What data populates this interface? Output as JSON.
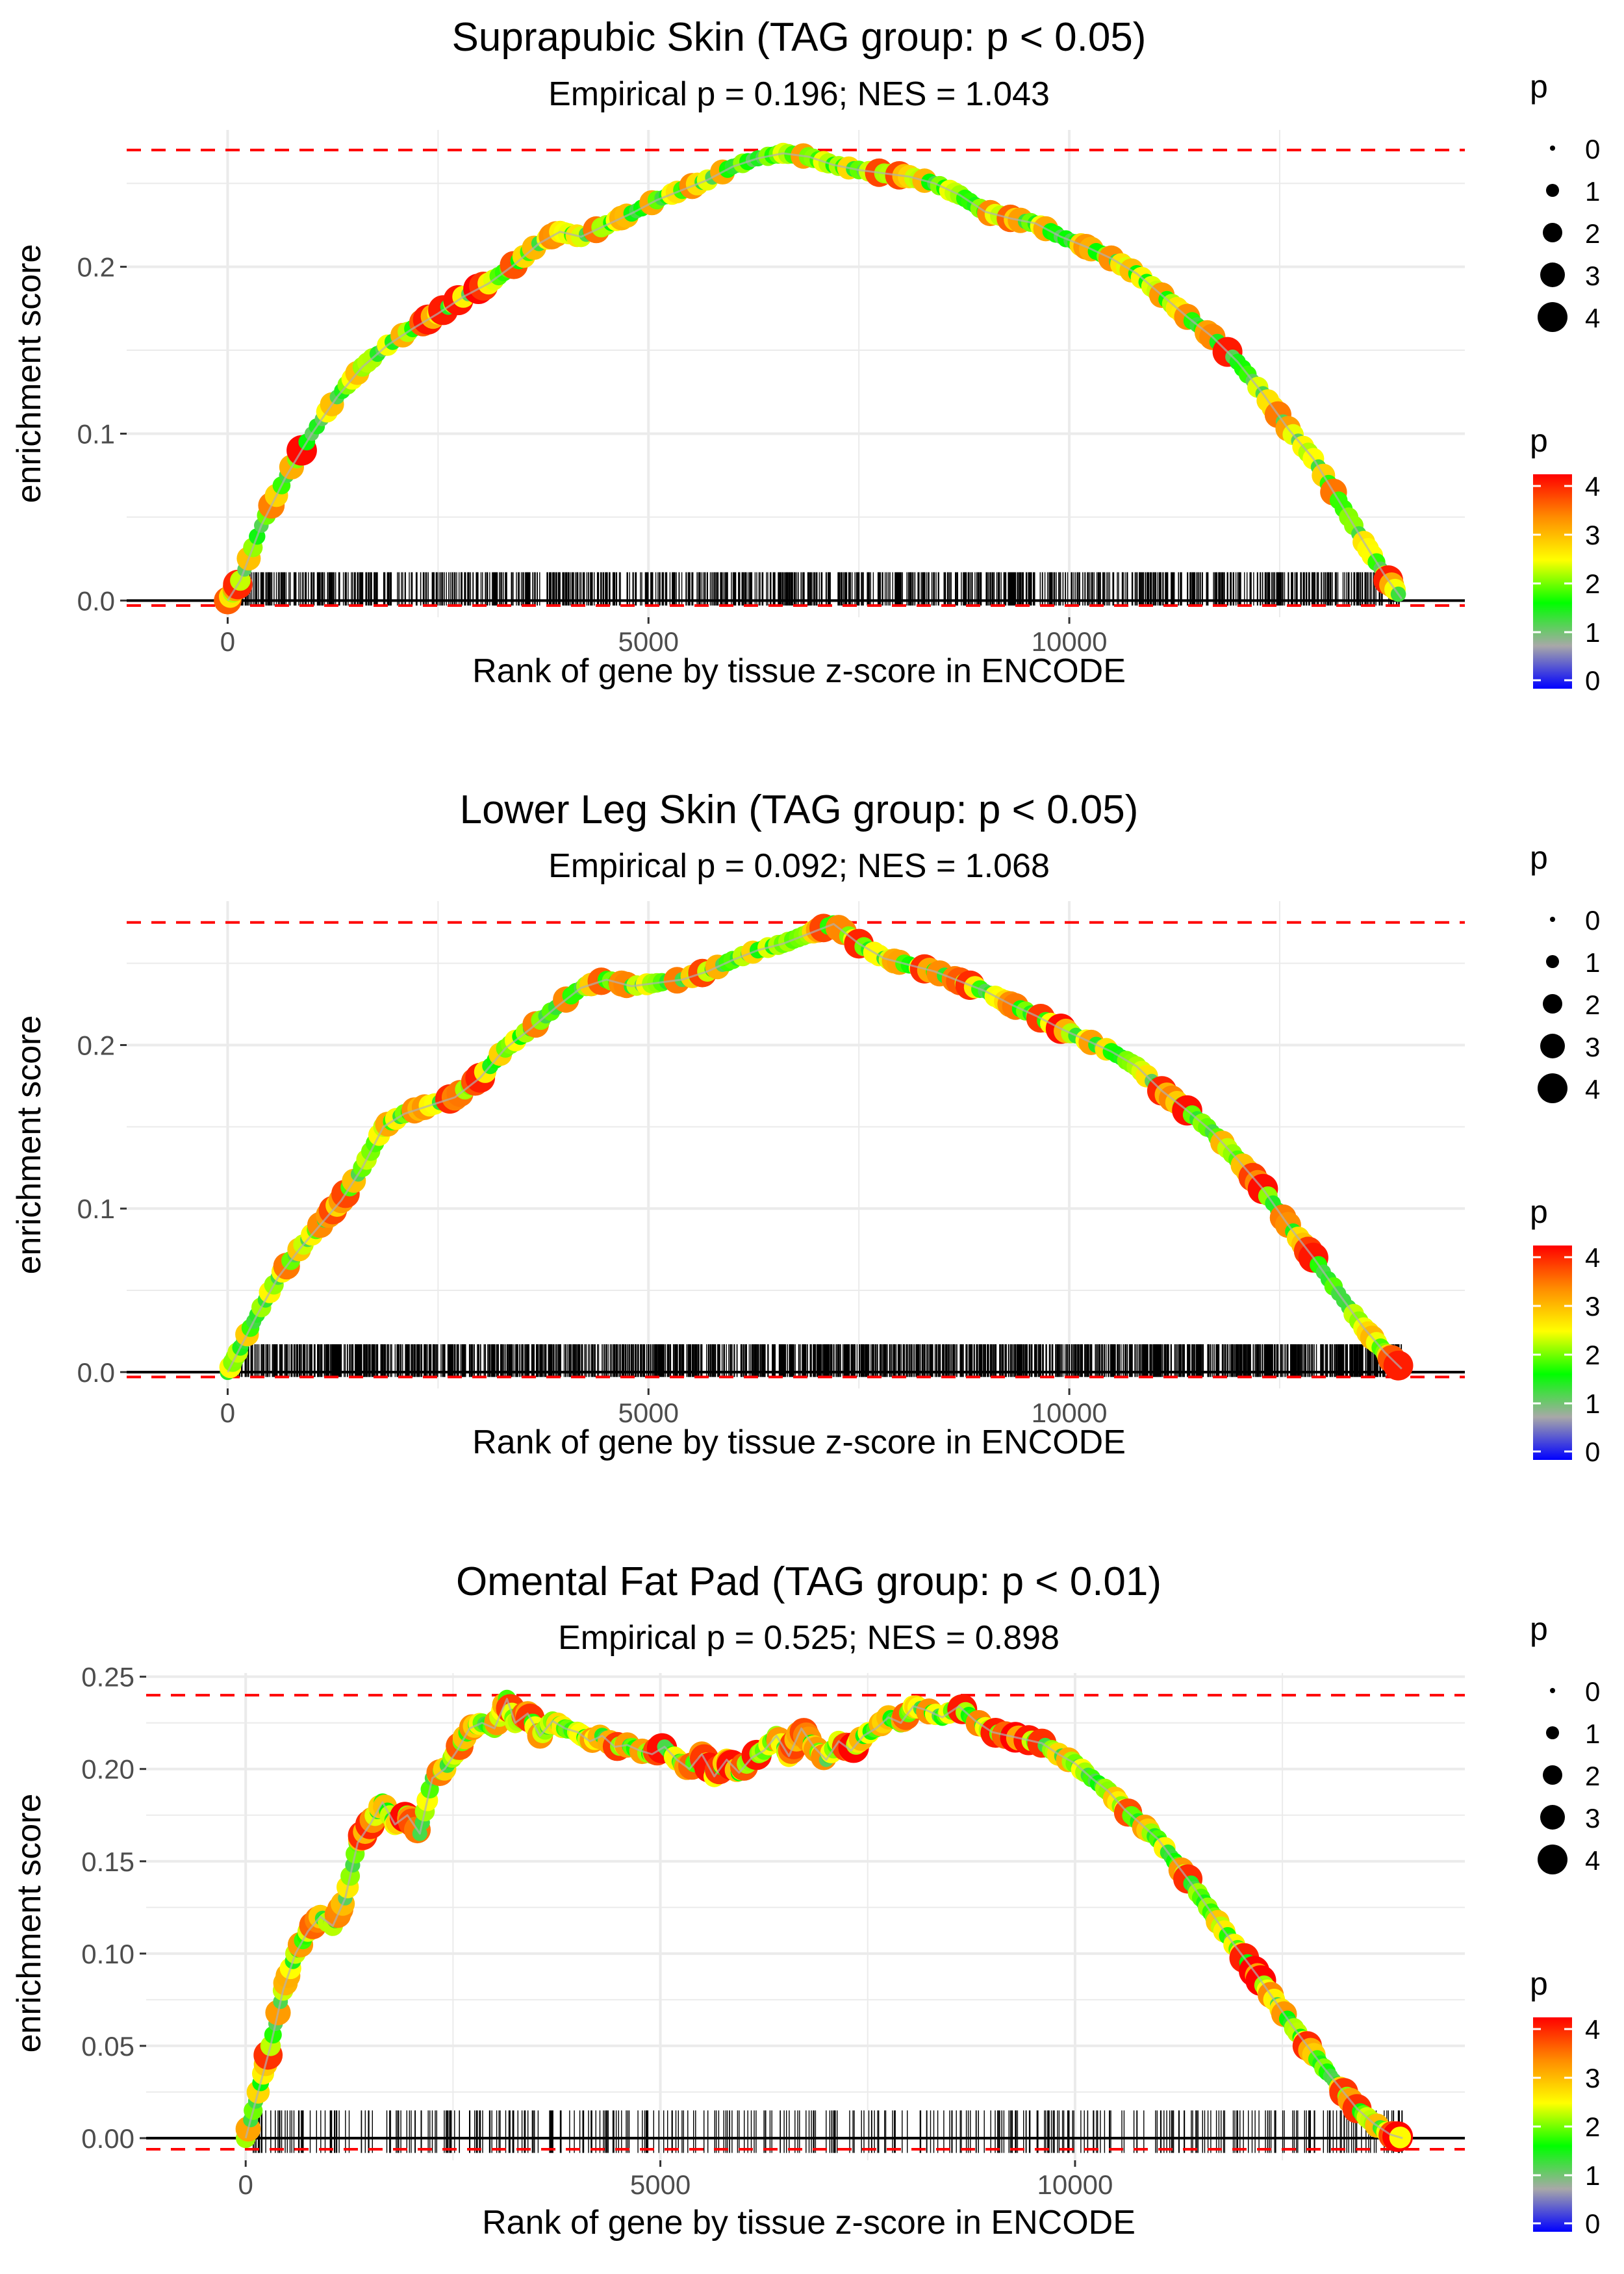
{
  "chart_data": [
    {
      "type": "line",
      "title": "Suprapubic Skin (TAG group: p < 0.05)",
      "subtitle": "Empirical p = 0.196; NES = 1.043",
      "xlabel": "Rank of gene by tissue z-score in ENCODE",
      "ylabel": "enrichment score",
      "xlim": [
        -1200,
        14700
      ],
      "ylim": [
        -0.01,
        0.282
      ],
      "x_ticks": [
        0,
        5000,
        10000
      ],
      "x_tick_labels": [
        "0",
        "5000",
        "10000"
      ],
      "y_ticks": [
        0.0,
        0.1,
        0.2
      ],
      "y_tick_labels": [
        "0.0",
        "0.1",
        "0.2"
      ],
      "max_es": 0.27,
      "min_es": -0.003,
      "rug": {
        "x_min": 50,
        "x_max": 13950,
        "y_bottom": -0.003,
        "y_top": 0.017,
        "count": 1150
      },
      "series": [
        {
          "name": "running enrichment score",
          "x": [
            0,
            150,
            400,
            700,
            1000,
            1300,
            1600,
            1900,
            2200,
            2500,
            2800,
            3100,
            3400,
            3700,
            3950,
            4200,
            4500,
            4800,
            5100,
            5400,
            5700,
            6000,
            6300,
            6600,
            6900,
            7200,
            7500,
            7800,
            8100,
            8400,
            8700,
            9000,
            9300,
            9600,
            9900,
            10200,
            10500,
            10800,
            11100,
            11400,
            11700,
            12000,
            12300,
            12600,
            12900,
            13200,
            13500,
            13750,
            13950
          ],
          "values": [
            0.0,
            0.012,
            0.045,
            0.075,
            0.1,
            0.122,
            0.14,
            0.153,
            0.163,
            0.172,
            0.182,
            0.19,
            0.201,
            0.214,
            0.221,
            0.218,
            0.225,
            0.232,
            0.24,
            0.246,
            0.252,
            0.26,
            0.265,
            0.268,
            0.266,
            0.261,
            0.258,
            0.256,
            0.254,
            0.25,
            0.243,
            0.233,
            0.229,
            0.226,
            0.218,
            0.212,
            0.205,
            0.196,
            0.183,
            0.17,
            0.158,
            0.143,
            0.124,
            0.103,
            0.085,
            0.06,
            0.035,
            0.015,
            0.001
          ]
        }
      ],
      "legend_size": {
        "title": "p",
        "labels": [
          "0",
          "1",
          "2",
          "3",
          "4"
        ],
        "values": [
          0,
          1,
          2,
          3,
          4
        ]
      },
      "legend_color": {
        "title": "p",
        "labels": [
          "4",
          "3",
          "2",
          "1",
          "0"
        ],
        "values": [
          4,
          3,
          2,
          1,
          0
        ]
      }
    },
    {
      "type": "line",
      "title": "Lower Leg Skin (TAG group: p < 0.05)",
      "subtitle": "Empirical p = 0.092; NES = 1.068",
      "xlabel": "Rank of gene by tissue z-score in ENCODE",
      "ylabel": "enrichment score",
      "xlim": [
        -1200,
        14700
      ],
      "ylim": [
        -0.01,
        0.288
      ],
      "x_ticks": [
        0,
        5000,
        10000
      ],
      "x_tick_labels": [
        "0",
        "5000",
        "10000"
      ],
      "y_ticks": [
        0.0,
        0.1,
        0.2
      ],
      "y_tick_labels": [
        "0.0",
        "0.1",
        "0.2"
      ],
      "max_es": 0.275,
      "min_es": -0.003,
      "rug": {
        "x_min": 50,
        "x_max": 13950,
        "y_bottom": -0.003,
        "y_top": 0.017,
        "count": 1750
      },
      "series": [
        {
          "name": "running enrichment score",
          "x": [
            0,
            150,
            350,
            600,
            850,
            1100,
            1350,
            1600,
            1850,
            2100,
            2400,
            2700,
            3000,
            3300,
            3600,
            3900,
            4200,
            4500,
            4800,
            5100,
            5400,
            5700,
            6000,
            6300,
            6600,
            6900,
            7200,
            7500,
            7800,
            8100,
            8400,
            8700,
            9000,
            9300,
            9600,
            9900,
            10200,
            10500,
            10800,
            11100,
            11400,
            11700,
            12000,
            12300,
            12600,
            12900,
            13200,
            13500,
            13750,
            13950
          ],
          "values": [
            0.0,
            0.015,
            0.035,
            0.058,
            0.075,
            0.09,
            0.105,
            0.125,
            0.15,
            0.158,
            0.163,
            0.168,
            0.18,
            0.198,
            0.21,
            0.223,
            0.235,
            0.24,
            0.236,
            0.238,
            0.24,
            0.245,
            0.252,
            0.258,
            0.262,
            0.268,
            0.274,
            0.262,
            0.253,
            0.249,
            0.245,
            0.239,
            0.233,
            0.225,
            0.218,
            0.21,
            0.203,
            0.196,
            0.187,
            0.172,
            0.16,
            0.147,
            0.13,
            0.112,
            0.09,
            0.07,
            0.048,
            0.027,
            0.012,
            0.002
          ]
        }
      ],
      "legend_size": {
        "title": "p",
        "labels": [
          "0",
          "1",
          "2",
          "3",
          "4"
        ],
        "values": [
          0,
          1,
          2,
          3,
          4
        ]
      },
      "legend_color": {
        "title": "p",
        "labels": [
          "4",
          "3",
          "2",
          "1",
          "0"
        ],
        "values": [
          4,
          3,
          2,
          1,
          0
        ]
      }
    },
    {
      "type": "line",
      "title": "Omental Fat Pad (TAG group: p < 0.01)",
      "subtitle": "Empirical p = 0.525; NES = 0.898",
      "xlabel": "Rank of gene by tissue z-score in ENCODE",
      "ylabel": "enrichment score",
      "xlim": [
        -1200,
        14700
      ],
      "ylim": [
        -0.012,
        0.252
      ],
      "x_ticks": [
        0,
        5000,
        10000
      ],
      "x_tick_labels": [
        "0",
        "5000",
        "10000"
      ],
      "y_ticks": [
        0.0,
        0.05,
        0.1,
        0.15,
        0.2,
        0.25
      ],
      "y_tick_labels": [
        "0.00",
        "0.05",
        "0.10",
        "0.15",
        "0.20",
        "0.25"
      ],
      "max_es": 0.24,
      "min_es": -0.006,
      "rug": {
        "x_min": 50,
        "x_max": 13950,
        "y_bottom": -0.008,
        "y_top": 0.015,
        "count": 420
      },
      "series": [
        {
          "name": "running enrichment score",
          "x": [
            0,
            150,
            300,
            450,
            600,
            750,
            900,
            1050,
            1200,
            1350,
            1500,
            1650,
            1800,
            1950,
            2100,
            2250,
            2400,
            2550,
            2700,
            2850,
            3000,
            3150,
            3250,
            3400,
            3550,
            3700,
            3850,
            4000,
            4150,
            4300,
            4450,
            4600,
            4750,
            4900,
            5050,
            5200,
            5350,
            5500,
            5650,
            5800,
            5950,
            6100,
            6250,
            6400,
            6550,
            6700,
            6850,
            7000,
            7150,
            7300,
            7450,
            7600,
            7750,
            7900,
            8050,
            8200,
            8400,
            8600,
            8800,
            9000,
            9200,
            9400,
            9600,
            9800,
            10000,
            10200,
            10400,
            10600,
            10800,
            11000,
            11200,
            11400,
            11600,
            11800,
            12000,
            12200,
            12400,
            12600,
            12800,
            13000,
            13200,
            13400,
            13600,
            13800,
            13950
          ],
          "values": [
            0.0,
            0.025,
            0.05,
            0.08,
            0.1,
            0.112,
            0.12,
            0.115,
            0.13,
            0.16,
            0.17,
            0.182,
            0.17,
            0.175,
            0.165,
            0.195,
            0.2,
            0.21,
            0.222,
            0.225,
            0.222,
            0.238,
            0.225,
            0.23,
            0.218,
            0.226,
            0.222,
            0.22,
            0.215,
            0.218,
            0.212,
            0.213,
            0.21,
            0.208,
            0.212,
            0.205,
            0.2,
            0.208,
            0.196,
            0.205,
            0.198,
            0.206,
            0.21,
            0.218,
            0.207,
            0.222,
            0.212,
            0.205,
            0.215,
            0.21,
            0.218,
            0.222,
            0.228,
            0.225,
            0.234,
            0.232,
            0.228,
            0.234,
            0.226,
            0.22,
            0.218,
            0.216,
            0.214,
            0.208,
            0.203,
            0.195,
            0.188,
            0.178,
            0.17,
            0.162,
            0.15,
            0.138,
            0.125,
            0.112,
            0.1,
            0.088,
            0.075,
            0.062,
            0.05,
            0.038,
            0.027,
            0.016,
            0.008,
            0.002,
            0.0
          ]
        }
      ],
      "legend_size": {
        "title": "p",
        "labels": [
          "0",
          "1",
          "2",
          "3",
          "4"
        ],
        "values": [
          0,
          1,
          2,
          3,
          4
        ]
      },
      "legend_color": {
        "title": "p",
        "labels": [
          "4",
          "3",
          "2",
          "1",
          "0"
        ],
        "values": [
          4,
          3,
          2,
          1,
          0
        ]
      }
    }
  ],
  "colors": {
    "gradient_stops": [
      "#0000ff",
      "#a8a8a8",
      "#00ff00",
      "#ffff00",
      "#ff8c00",
      "#ff0000"
    ],
    "reference_line": "#ff0000",
    "grid": "#ebebeb",
    "rug": "#000000",
    "zero_line": "#000000"
  }
}
